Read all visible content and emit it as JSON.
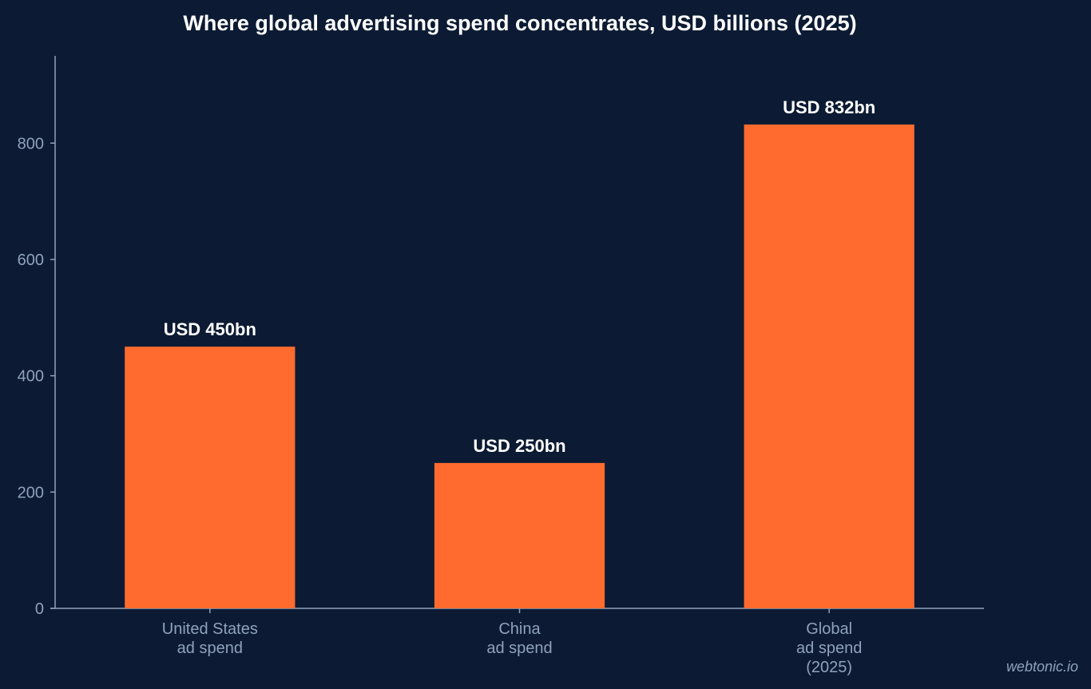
{
  "chart_data": {
    "type": "bar",
    "title": "Where global advertising spend concentrates, USD billions (2025)",
    "xlabel": "",
    "ylabel": "",
    "ylim": [
      0,
      950
    ],
    "yticks": [
      0,
      200,
      400,
      600,
      800
    ],
    "categories": [
      [
        "United States",
        "ad spend"
      ],
      [
        "China",
        "ad spend"
      ],
      [
        "Global",
        "ad spend",
        "(2025)"
      ]
    ],
    "values": [
      450,
      250,
      832
    ],
    "data_labels": [
      "USD 450bn",
      "USD 250bn",
      "USD 832bn"
    ],
    "bar_color": "#ff6b2e",
    "grid": false,
    "legend": "none"
  },
  "watermark": "webtonic.io",
  "colors": {
    "background": "#0c1b33",
    "axis": "#8fa1bd",
    "text": "#ffffff"
  }
}
